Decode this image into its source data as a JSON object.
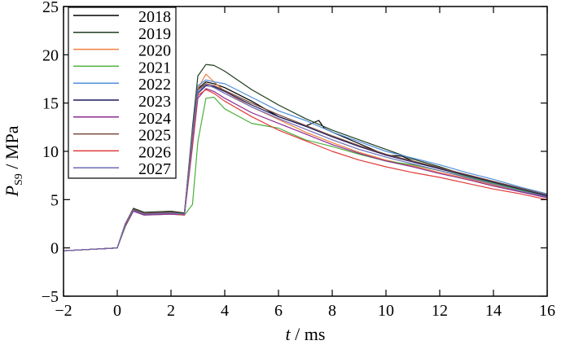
{
  "chart_data": {
    "type": "line",
    "xlabel_var": "t",
    "xlabel_unit": " / ms",
    "ylabel_var": "P",
    "ylabel_sub": "S9",
    "ylabel_unit": " / MPa",
    "xlim": [
      -2,
      16
    ],
    "ylim": [
      -5,
      25
    ],
    "xticks": [
      -2,
      0,
      2,
      4,
      6,
      8,
      10,
      12,
      14,
      16
    ],
    "yticks": [
      -5,
      0,
      5,
      10,
      15,
      20,
      25
    ],
    "legend_position": "top-left",
    "series": [
      {
        "name": "2018",
        "color": "#000000",
        "x": [
          -2,
          0,
          0.3,
          0.6,
          1,
          2,
          2.5,
          2.8,
          3,
          3.3,
          3.6,
          4,
          5,
          6,
          7,
          7.5,
          7.7,
          8,
          9,
          10,
          10.6,
          11,
          12,
          13,
          14,
          15,
          16
        ],
        "y": [
          -0.3,
          0,
          2.5,
          4,
          3.6,
          3.8,
          3.6,
          12,
          16.5,
          17.2,
          17,
          16.6,
          15.2,
          13.6,
          12.6,
          13.2,
          12.4,
          12,
          10.8,
          9.6,
          9.5,
          9,
          8.2,
          7.5,
          6.8,
          6,
          5.2
        ]
      },
      {
        "name": "2019",
        "color": "#1f3d1f",
        "x": [
          -2,
          0,
          0.3,
          0.6,
          1,
          2,
          2.5,
          2.8,
          3,
          3.3,
          3.6,
          4,
          5,
          6,
          7,
          8,
          9,
          10,
          11,
          12,
          13,
          14,
          15,
          16
        ],
        "y": [
          -0.3,
          0,
          2.5,
          4.1,
          3.7,
          3.8,
          3.6,
          12.5,
          17.8,
          19,
          18.9,
          18.3,
          16.4,
          14.8,
          13.4,
          12.2,
          11.2,
          10.2,
          9.2,
          8.4,
          7.5,
          6.8,
          6,
          5.3
        ]
      },
      {
        "name": "2020",
        "color": "#f08040",
        "x": [
          -2,
          0,
          0.3,
          0.6,
          1,
          2,
          2.5,
          2.8,
          3,
          3.3,
          3.6,
          4,
          5,
          6,
          7,
          8,
          9,
          10,
          11,
          12,
          13,
          14,
          15,
          16
        ],
        "y": [
          -0.3,
          0,
          2.4,
          3.9,
          3.5,
          3.7,
          3.5,
          11.5,
          16.5,
          18,
          17.2,
          16.2,
          14.6,
          13.3,
          12,
          10.9,
          9.9,
          9.1,
          8.5,
          7.8,
          7.2,
          6.5,
          5.9,
          5.3
        ]
      },
      {
        "name": "2021",
        "color": "#4caf3c",
        "x": [
          -2,
          0,
          0.3,
          0.6,
          1,
          2,
          2.5,
          2.8,
          3,
          3.3,
          3.6,
          4,
          5,
          6,
          7,
          8,
          9,
          10,
          11,
          12,
          13,
          14,
          15,
          16
        ],
        "y": [
          -0.3,
          0,
          2.2,
          3.8,
          3.4,
          3.5,
          3.4,
          4.5,
          11,
          15.5,
          15.6,
          14.4,
          12.9,
          12.4,
          11.2,
          10.5,
          9.7,
          9,
          8.6,
          8,
          7.4,
          6.7,
          6,
          5.4
        ]
      },
      {
        "name": "2022",
        "color": "#4f8fd8",
        "x": [
          -2,
          0,
          0.3,
          0.6,
          1,
          2,
          2.5,
          2.8,
          3,
          3.3,
          3.6,
          4,
          5,
          6,
          7,
          8,
          9,
          10,
          11,
          12,
          13,
          14,
          15,
          16
        ],
        "y": [
          -0.3,
          0,
          2.5,
          4,
          3.6,
          3.7,
          3.5,
          12,
          16.8,
          17.4,
          17.2,
          17,
          15.6,
          14.2,
          13.2,
          12,
          11,
          10,
          9.3,
          8.6,
          7.8,
          7.1,
          6.3,
          5.6
        ]
      },
      {
        "name": "2023",
        "color": "#1a1a5e",
        "x": [
          -2,
          0,
          0.3,
          0.6,
          1,
          2,
          2.5,
          2.8,
          3,
          3.3,
          3.6,
          4,
          5,
          6,
          7,
          8,
          9,
          10,
          11,
          12,
          13,
          14,
          15,
          16
        ],
        "y": [
          -0.3,
          0,
          2.4,
          3.9,
          3.5,
          3.6,
          3.5,
          11.2,
          16,
          16.8,
          16.7,
          16.2,
          14.8,
          13.6,
          12.6,
          11.5,
          10.5,
          9.6,
          8.9,
          8.2,
          7.5,
          6.8,
          6.1,
          5.4
        ]
      },
      {
        "name": "2024",
        "color": "#8c2a8c",
        "x": [
          -2,
          0,
          0.3,
          0.6,
          1,
          2,
          2.5,
          2.8,
          3,
          3.3,
          3.6,
          4,
          5,
          6,
          7,
          8,
          9,
          10,
          11,
          12,
          13,
          14,
          15,
          16
        ],
        "y": [
          -0.3,
          0,
          2.3,
          3.8,
          3.4,
          3.5,
          3.4,
          10.5,
          15.5,
          16.5,
          16.2,
          15.5,
          14,
          12.9,
          11.8,
          10.7,
          9.8,
          9,
          8.4,
          7.7,
          7.1,
          6.4,
          5.8,
          5.2
        ]
      },
      {
        "name": "2025",
        "color": "#7a4a3a",
        "x": [
          -2,
          0,
          0.3,
          0.6,
          1,
          2,
          2.5,
          2.8,
          3,
          3.3,
          3.6,
          4,
          5,
          6,
          7,
          8,
          9,
          10,
          11,
          12,
          13,
          14,
          15,
          16
        ],
        "y": [
          -0.3,
          0,
          2.5,
          4,
          3.6,
          3.7,
          3.5,
          11.8,
          16.4,
          17,
          16.8,
          16.3,
          15,
          13.8,
          12.7,
          11.6,
          10.6,
          9.7,
          9,
          8.3,
          7.6,
          6.9,
          6.2,
          5.5
        ]
      },
      {
        "name": "2026",
        "color": "#e03a3a",
        "x": [
          -2,
          0,
          0.3,
          0.6,
          1,
          2,
          2.5,
          2.8,
          3,
          3.3,
          3.6,
          4,
          5,
          6,
          7,
          8,
          9,
          10,
          11,
          12,
          13,
          14,
          15,
          16
        ],
        "y": [
          -0.3,
          0,
          2.4,
          3.9,
          3.5,
          3.6,
          3.4,
          10.8,
          15.8,
          16.4,
          16,
          15.2,
          13.6,
          12.2,
          11.1,
          10,
          9.1,
          8.4,
          7.8,
          7.3,
          6.7,
          6.1,
          5.6,
          5
        ]
      },
      {
        "name": "2027",
        "color": "#6b6bb8",
        "x": [
          -2,
          0,
          0.3,
          0.6,
          1,
          2,
          2.5,
          2.8,
          3,
          3.3,
          3.6,
          4,
          5,
          6,
          7,
          8,
          9,
          10,
          11,
          12,
          13,
          14,
          15,
          16
        ],
        "y": [
          -0.3,
          0,
          2.5,
          3.9,
          3.5,
          3.6,
          3.5,
          11.5,
          16.2,
          16.9,
          16.6,
          16,
          14.6,
          13.4,
          12.3,
          11.2,
          10.2,
          9.4,
          8.7,
          8,
          7.3,
          6.6,
          5.9,
          5.3
        ]
      }
    ]
  }
}
